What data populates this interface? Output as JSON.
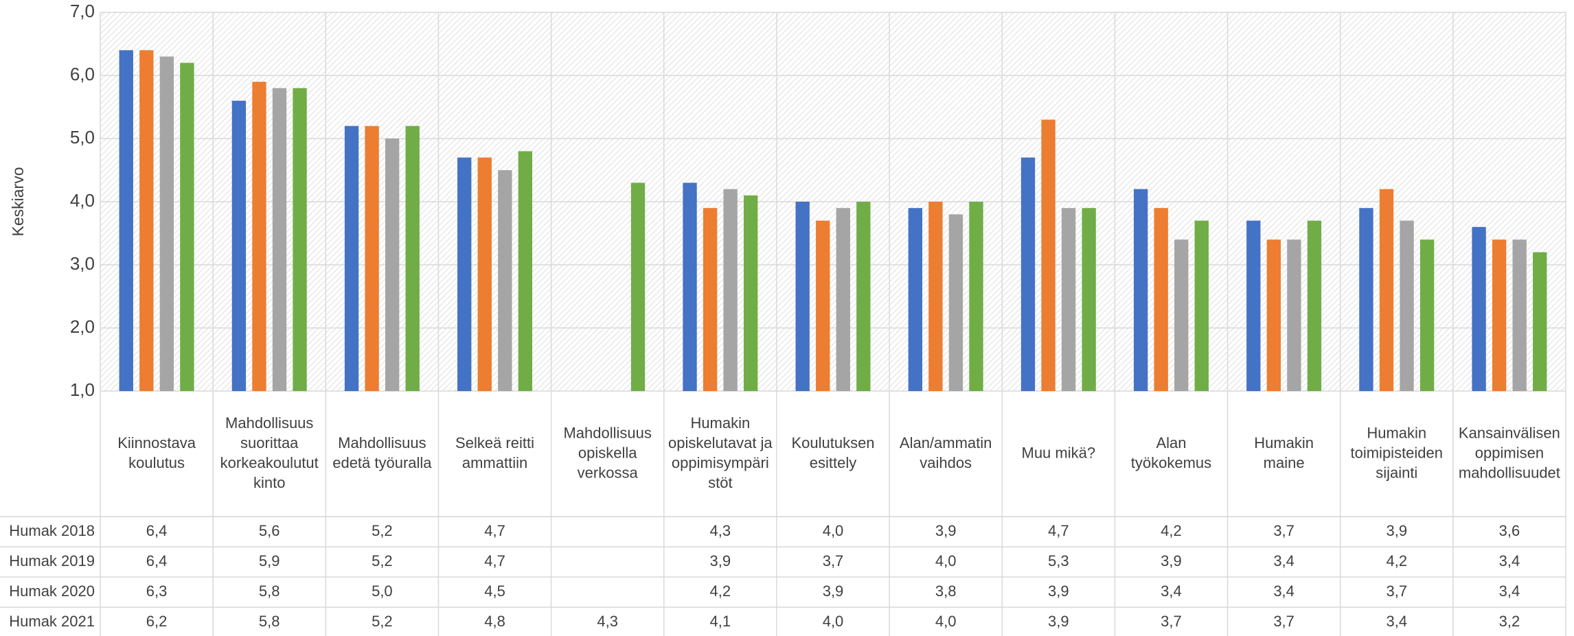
{
  "chart_data": {
    "type": "bar",
    "y_label": "Keskiarvo",
    "categories": [
      "Kiinnostava koulutus",
      "Mahdollisuus suorittaa korkeakoulututkinto",
      "Mahdollisuus edetä työuralla",
      "Selkeä reitti ammattiin",
      "Mahdollisuus opiskella verkossa",
      "Humakin opiskelutavat ja oppimisympäristöt",
      "Koulutuksen esittely",
      "Alan/ammatin vaihdos",
      "Muu mikä?",
      "Alan työkokemus",
      "Humakin maine",
      "Humakin toimipisteiden sijainti",
      "Kansainvälisen oppimisen mahdollisuudet"
    ],
    "series": [
      {
        "name": "Humak 2018",
        "color": "#4472c4",
        "values": [
          6.4,
          5.6,
          5.2,
          4.7,
          null,
          4.3,
          4.0,
          3.9,
          4.7,
          4.2,
          3.7,
          3.9,
          3.6
        ],
        "value_labels": [
          "6,4",
          "5,6",
          "5,2",
          "4,7",
          null,
          "4,3",
          "4,0",
          "3,9",
          "4,7",
          "4,2",
          "3,7",
          "3,9",
          "3,6"
        ]
      },
      {
        "name": "Humak 2019",
        "color": "#ed7d31",
        "values": [
          6.4,
          5.9,
          5.2,
          4.7,
          null,
          3.9,
          3.7,
          4.0,
          5.3,
          3.9,
          3.4,
          4.2,
          3.4
        ],
        "value_labels": [
          "6,4",
          "5,9",
          "5,2",
          "4,7",
          null,
          "3,9",
          "3,7",
          "4,0",
          "5,3",
          "3,9",
          "3,4",
          "4,2",
          "3,4"
        ]
      },
      {
        "name": "Humak 2020",
        "color": "#a5a5a5",
        "values": [
          6.3,
          5.8,
          5.0,
          4.5,
          null,
          4.2,
          3.9,
          3.8,
          3.9,
          3.4,
          3.4,
          3.7,
          3.4
        ],
        "value_labels": [
          "6,3",
          "5,8",
          "5,0",
          "4,5",
          null,
          "4,2",
          "3,9",
          "3,8",
          "3,9",
          "3,4",
          "3,4",
          "3,7",
          "3,4"
        ]
      },
      {
        "name": "Humak 2021",
        "color": "#70ad47",
        "values": [
          6.2,
          5.8,
          5.2,
          4.8,
          4.3,
          4.1,
          4.0,
          4.0,
          3.9,
          3.7,
          3.7,
          3.4,
          3.2
        ],
        "value_labels": [
          "6,2",
          "5,8",
          "5,2",
          "4,8",
          "4,3",
          "4,1",
          "4,0",
          "4,0",
          "3,9",
          "3,7",
          "3,7",
          "3,4",
          "3,2"
        ]
      }
    ],
    "ylim": [
      1,
      7
    ],
    "yticks": [
      {
        "value": 1,
        "label": "1,0"
      },
      {
        "value": 2,
        "label": "2,0"
      },
      {
        "value": 3,
        "label": "3,0"
      },
      {
        "value": 4,
        "label": "4,0"
      },
      {
        "value": 5,
        "label": "5,0"
      },
      {
        "value": 6,
        "label": "6,0"
      },
      {
        "value": 7,
        "label": "7,0"
      }
    ],
    "grid": true
  }
}
